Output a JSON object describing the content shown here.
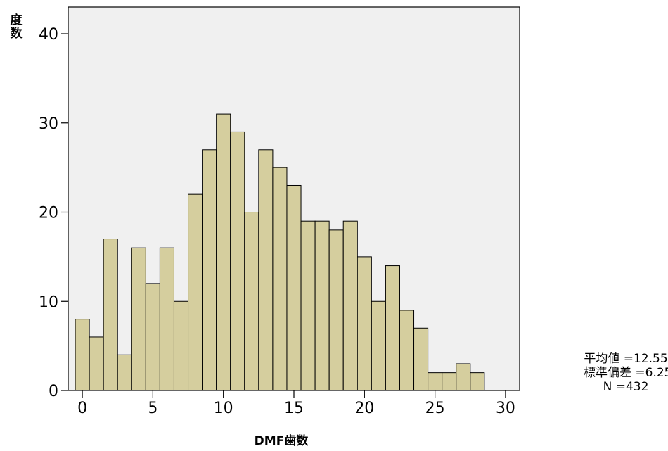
{
  "chart_data": {
    "type": "bar",
    "subtype": "histogram",
    "xlabel": "DMF歯数",
    "ylabel": [
      "度",
      "数"
    ],
    "xlim": [
      -1,
      31
    ],
    "ylim": [
      0,
      43
    ],
    "xticks": [
      0,
      5,
      10,
      15,
      20,
      25,
      30
    ],
    "yticks": [
      0,
      10,
      20,
      30,
      40
    ],
    "bins": [
      0,
      1,
      2,
      3,
      4,
      5,
      6,
      7,
      8,
      9,
      10,
      11,
      12,
      13,
      14,
      15,
      16,
      17,
      18,
      19,
      20,
      21,
      22,
      23,
      24,
      25,
      26,
      27,
      28
    ],
    "values": [
      8,
      6,
      17,
      4,
      16,
      12,
      16,
      10,
      22,
      27,
      31,
      29,
      20,
      27,
      25,
      23,
      19,
      19,
      18,
      19,
      15,
      10,
      14,
      9,
      7,
      2,
      2,
      3,
      2
    ],
    "bar_color": "#D5CE9E",
    "plot_background": "#F0F0F0",
    "grid": false,
    "legend": "none",
    "stats": {
      "mean": "平均値 =12.55",
      "sd": "標準偏差 =6.25",
      "n": "N =432"
    }
  }
}
